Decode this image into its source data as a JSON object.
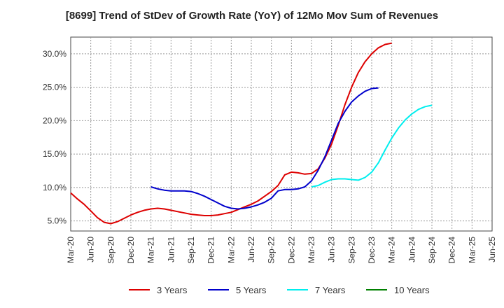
{
  "chart_data": {
    "type": "line",
    "title": "[8699]  Trend of StDev of Growth Rate (YoY) of 12Mo Mov Sum of Revenues",
    "xlabel": "",
    "ylabel": "",
    "x_ticks": [
      "Mar-20",
      "Jun-20",
      "Sep-20",
      "Dec-20",
      "Mar-21",
      "Jun-21",
      "Sep-21",
      "Dec-21",
      "Mar-22",
      "Jun-22",
      "Sep-22",
      "Dec-22",
      "Mar-23",
      "Jun-23",
      "Sep-23",
      "Dec-23",
      "Mar-24",
      "Jun-24",
      "Sep-24",
      "Dec-24",
      "Mar-25",
      "Jun-25"
    ],
    "y_ticks": [
      5.0,
      10.0,
      15.0,
      20.0,
      25.0,
      30.0
    ],
    "y_tick_labels": [
      "5.0%",
      "10.0%",
      "15.0%",
      "20.0%",
      "25.0%",
      "30.0%"
    ],
    "ylim": [
      3.5,
      32.5
    ],
    "grid": true,
    "legend_position": "bottom",
    "series": [
      {
        "name": "3 Years",
        "color": "#dd0000",
        "start_index": 0,
        "values": [
          9.2,
          8.3,
          7.5,
          6.5,
          5.5,
          4.8,
          4.6,
          4.9,
          5.4,
          5.9,
          6.3,
          6.6,
          6.8,
          6.9,
          6.8,
          6.6,
          6.4,
          6.2,
          6.0,
          5.9,
          5.8,
          5.8,
          5.9,
          6.1,
          6.3,
          6.7,
          7.1,
          7.5,
          8.0,
          8.7,
          9.4,
          10.3,
          11.9,
          12.3,
          12.2,
          12.0,
          12.1,
          12.8,
          14.4,
          16.5,
          19.3,
          22.4,
          25.0,
          27.2,
          28.8,
          30.0,
          30.9,
          31.4,
          31.6
        ]
      },
      {
        "name": "5 Years",
        "color": "#0000cc",
        "start_index": 12,
        "values": [
          10.1,
          9.8,
          9.6,
          9.5,
          9.5,
          9.5,
          9.4,
          9.1,
          8.7,
          8.2,
          7.7,
          7.2,
          6.9,
          6.8,
          6.9,
          7.1,
          7.4,
          7.8,
          8.4,
          9.5,
          9.7,
          9.7,
          9.8,
          10.1,
          11.0,
          12.6,
          14.6,
          17.1,
          19.6,
          21.4,
          22.8,
          23.7,
          24.4,
          24.8,
          24.9
        ]
      },
      {
        "name": "7 Years",
        "color": "#00eeee",
        "start_index": 36,
        "values": [
          10.1,
          10.3,
          10.8,
          11.2,
          11.3,
          11.3,
          11.2,
          11.1,
          11.5,
          12.3,
          13.7,
          15.6,
          17.4,
          18.9,
          20.1,
          21.0,
          21.7,
          22.1,
          22.3
        ]
      },
      {
        "name": "10 Years",
        "color": "#008000",
        "start_index": 0,
        "values": []
      }
    ]
  }
}
